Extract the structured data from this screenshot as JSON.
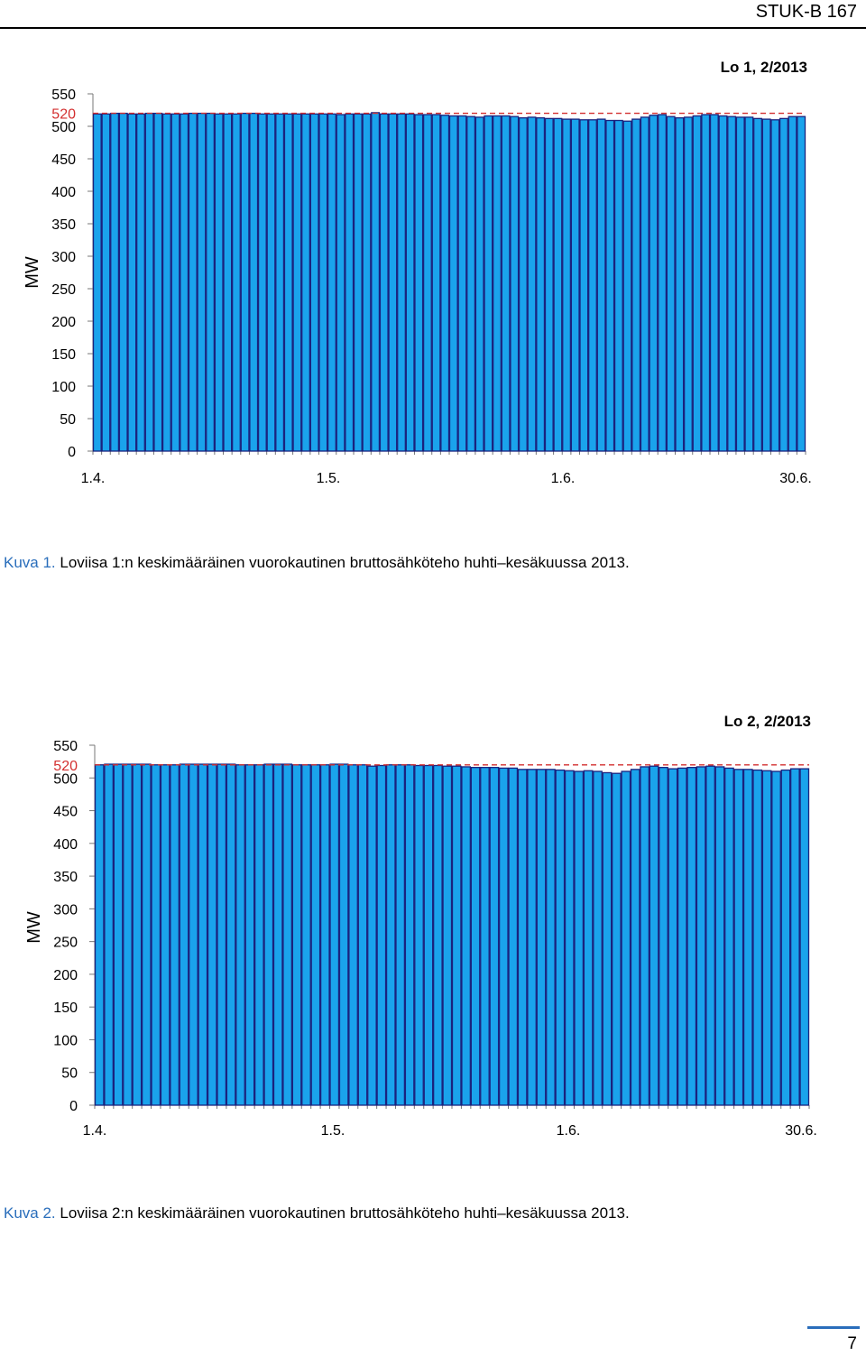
{
  "header": {
    "report_id": "STUK-B 167"
  },
  "footer": {
    "page_number": "7"
  },
  "colors": {
    "bar_fill": "#1aa3ec",
    "bar_stroke": "#1a237e",
    "reference_line": "#d32f2f",
    "caption_label": "#2a6ebb"
  },
  "figures": [
    {
      "caption_label": "Kuva 1.",
      "caption_text": "Loviisa 1:n keskimääräinen vuorokautinen bruttosähköteho huhti–kesäkuussa 2013."
    },
    {
      "caption_label": "Kuva 2.",
      "caption_text": "Loviisa 2:n keskimääräinen vuorokautinen bruttosähköteho huhti–kesäkuussa 2013."
    }
  ],
  "chart_data": [
    {
      "type": "bar",
      "title": "Lo 1, 2/2013",
      "ylabel": "MW",
      "ylim": [
        0,
        550
      ],
      "yticks": [
        "0",
        "50",
        "100",
        "150",
        "200",
        "250",
        "300",
        "350",
        "400",
        "450",
        "500",
        "550"
      ],
      "reference_line": {
        "value": 520,
        "label": "520",
        "style": "dashed"
      },
      "x_tick_labels": [
        "1.4.",
        "1.5.",
        "1.6.",
        "30.6."
      ],
      "x_range": [
        "1.4.",
        "30.6."
      ],
      "series": [
        {
          "values": [
            519,
            519,
            520,
            520,
            519,
            519,
            520,
            520,
            519,
            519,
            519,
            520,
            520,
            520,
            519,
            519,
            519,
            520,
            520,
            519,
            519,
            519,
            519,
            519,
            519,
            519,
            519,
            519,
            518,
            519,
            519,
            519,
            521,
            519,
            519,
            519,
            519,
            518,
            518,
            518,
            517,
            516,
            516,
            515,
            514,
            516,
            516,
            516,
            515,
            513,
            514,
            513,
            512,
            512,
            511,
            511,
            510,
            510,
            511,
            509,
            509,
            508,
            511,
            514,
            517,
            518,
            515,
            513,
            514,
            516,
            518,
            518,
            516,
            515,
            514,
            514,
            512,
            511,
            510,
            512,
            515,
            515
          ]
        }
      ]
    },
    {
      "type": "bar",
      "title": "Lo 2, 2/2013",
      "ylabel": "MW",
      "ylim": [
        0,
        550
      ],
      "yticks": [
        "0",
        "50",
        "100",
        "150",
        "200",
        "250",
        "300",
        "350",
        "400",
        "450",
        "500",
        "550"
      ],
      "reference_line": {
        "value": 520,
        "label": "520",
        "style": "dashed"
      },
      "x_tick_labels": [
        "1.4.",
        "1.5.",
        "1.6.",
        "30.6."
      ],
      "x_range": [
        "1.4.",
        "30.6."
      ],
      "series": [
        {
          "values": [
            520,
            521,
            521,
            521,
            521,
            521,
            520,
            520,
            520,
            521,
            521,
            521,
            521,
            521,
            521,
            520,
            520,
            520,
            521,
            521,
            521,
            520,
            520,
            520,
            520,
            521,
            521,
            520,
            520,
            518,
            519,
            520,
            520,
            520,
            519,
            519,
            519,
            518,
            518,
            517,
            516,
            516,
            516,
            515,
            515,
            513,
            513,
            513,
            513,
            512,
            511,
            510,
            511,
            510,
            508,
            507,
            510,
            513,
            517,
            518,
            516,
            514,
            515,
            516,
            517,
            518,
            517,
            515,
            513,
            513,
            512,
            511,
            510,
            512,
            514,
            514
          ]
        }
      ]
    }
  ]
}
